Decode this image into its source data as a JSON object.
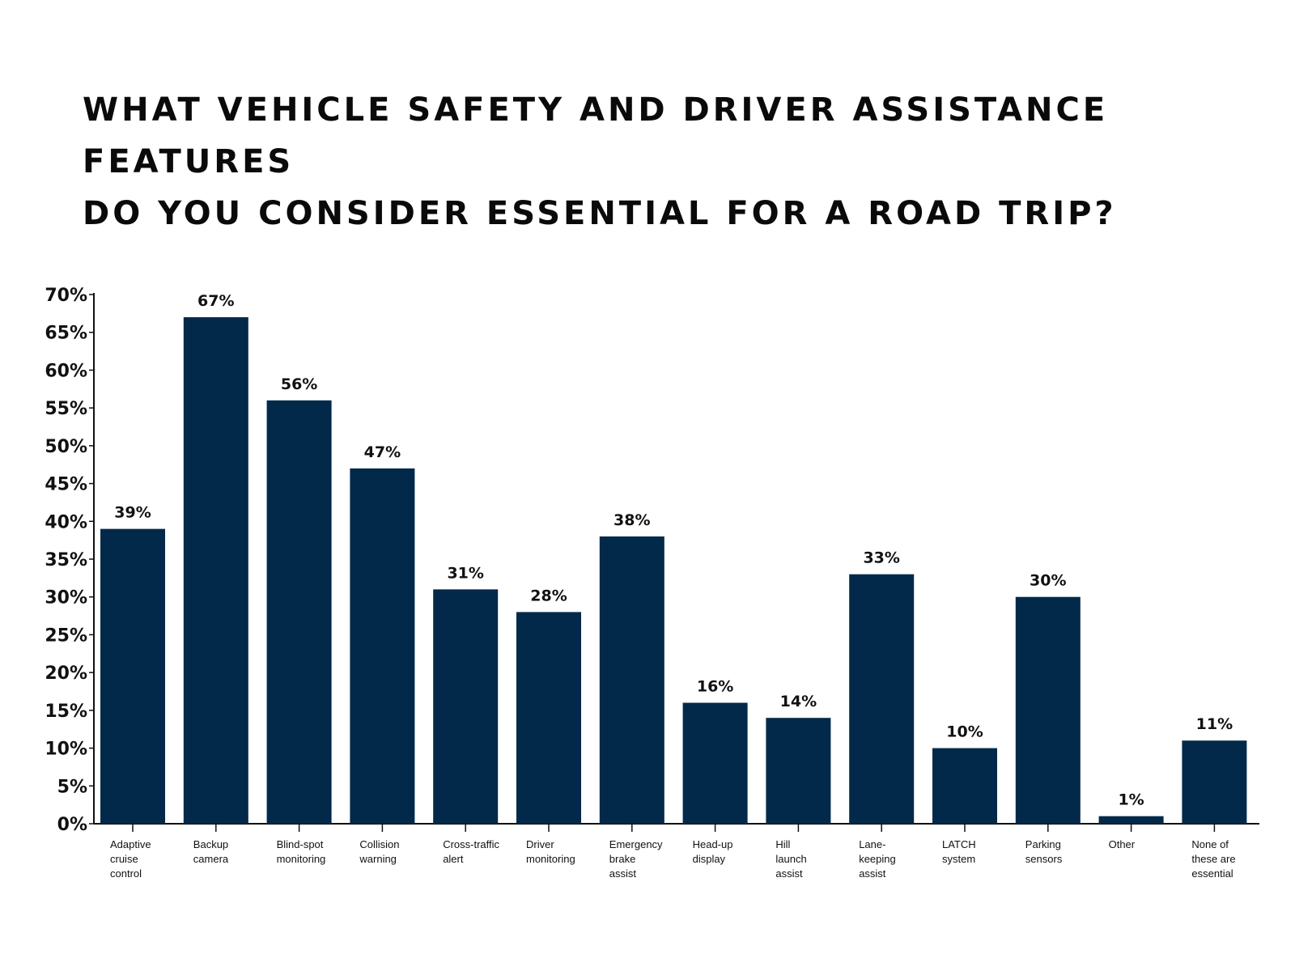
{
  "chart_data": {
    "type": "bar",
    "title_lines": [
      "WHAT VEHICLE SAFETY AND DRIVER ASSISTANCE FEATURES",
      "DO YOU CONSIDER ESSENTIAL FOR A ROAD TRIP?"
    ],
    "categories": [
      [
        "Adaptive",
        "cruise",
        "control"
      ],
      [
        "Backup",
        "camera"
      ],
      [
        "Blind-spot",
        "monitoring"
      ],
      [
        "Collision",
        "warning"
      ],
      [
        "Cross-traffic",
        "alert"
      ],
      [
        "Driver",
        "monitoring"
      ],
      [
        "Emergency",
        "brake",
        "assist"
      ],
      [
        "Head-up",
        "display"
      ],
      [
        "Hill",
        "launch",
        "assist"
      ],
      [
        "Lane-",
        "keeping",
        "assist"
      ],
      [
        "LATCH",
        "system"
      ],
      [
        "Parking",
        "sensors"
      ],
      [
        "Other"
      ],
      [
        "None of",
        "these are",
        "essential"
      ]
    ],
    "values": [
      39,
      67,
      56,
      47,
      31,
      28,
      38,
      16,
      14,
      33,
      10,
      30,
      1,
      11
    ],
    "data_labels": [
      "39%",
      "67%",
      "56%",
      "47%",
      "31%",
      "28%",
      "38%",
      "16%",
      "14%",
      "33%",
      "10%",
      "30%",
      "1%",
      "11%"
    ],
    "yticks": [
      "0%",
      "5%",
      "10%",
      "15%",
      "20%",
      "25%",
      "30%",
      "35%",
      "40%",
      "45%",
      "50%",
      "55%",
      "60%",
      "65%",
      "70%"
    ],
    "ylim": [
      0,
      70
    ],
    "xlabel": "",
    "ylabel": "",
    "grid": false,
    "bar_color": "#02294a"
  }
}
